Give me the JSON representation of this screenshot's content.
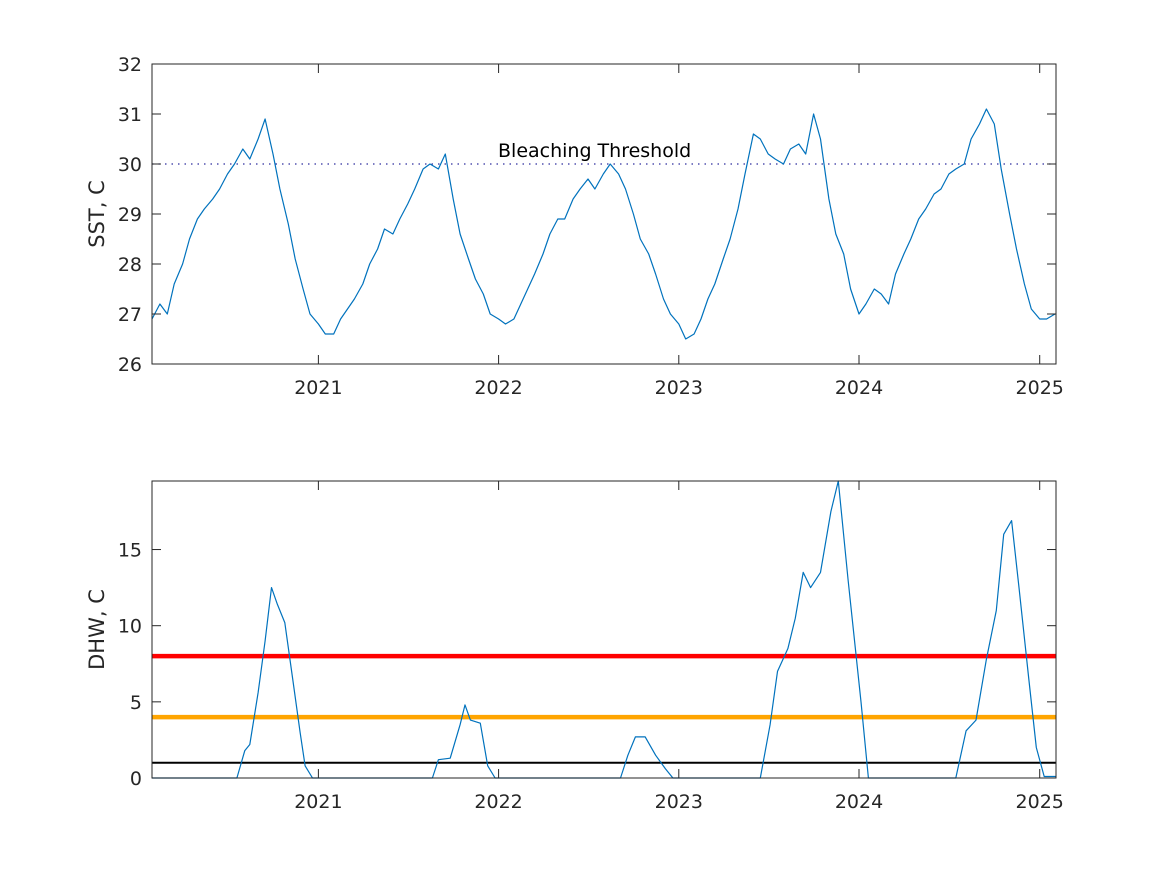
{
  "chart_data": [
    {
      "type": "line",
      "title": "",
      "xlabel": "",
      "ylabel": "SST, C",
      "xlim": [
        "2020-01-30",
        "2025-02-03"
      ],
      "ylim": [
        26,
        32
      ],
      "xtick_labels": [
        "2021",
        "2022",
        "2023",
        "2024",
        "2025"
      ],
      "ytick_labels": [
        "26",
        "27",
        "28",
        "29",
        "30",
        "31",
        "32"
      ],
      "annotation": "Bleaching Threshold",
      "threshold": 30,
      "series": [
        {
          "color": "#0072BD",
          "x": [
            "2020-01-30",
            "2020-02-15",
            "2020-03-01",
            "2020-03-15",
            "2020-04-01",
            "2020-04-15",
            "2020-05-01",
            "2020-05-15",
            "2020-06-01",
            "2020-06-15",
            "2020-07-01",
            "2020-07-15",
            "2020-08-01",
            "2020-08-15",
            "2020-09-01",
            "2020-09-15",
            "2020-10-01",
            "2020-10-15",
            "2020-11-01",
            "2020-11-15",
            "2020-12-01",
            "2020-12-15",
            "2021-01-01",
            "2021-01-15",
            "2021-02-01",
            "2021-02-15",
            "2021-03-01",
            "2021-03-15",
            "2021-04-01",
            "2021-04-15",
            "2021-05-01",
            "2021-05-15",
            "2021-06-01",
            "2021-06-15",
            "2021-07-01",
            "2021-07-15",
            "2021-08-01",
            "2021-08-15",
            "2021-09-01",
            "2021-09-15",
            "2021-10-01",
            "2021-10-15",
            "2021-11-01",
            "2021-11-15",
            "2021-12-01",
            "2021-12-15",
            "2022-01-01",
            "2022-01-15",
            "2022-02-01",
            "2022-02-15",
            "2022-03-01",
            "2022-03-15",
            "2022-04-01",
            "2022-04-15",
            "2022-05-01",
            "2022-05-15",
            "2022-06-01",
            "2022-06-15",
            "2022-07-01",
            "2022-07-15",
            "2022-08-01",
            "2022-08-15",
            "2022-09-01",
            "2022-09-15",
            "2022-10-01",
            "2022-10-15",
            "2022-11-01",
            "2022-11-15",
            "2022-12-01",
            "2022-12-15",
            "2023-01-01",
            "2023-01-15",
            "2023-02-01",
            "2023-02-15",
            "2023-03-01",
            "2023-03-15",
            "2023-04-01",
            "2023-04-15",
            "2023-05-01",
            "2023-05-15",
            "2023-06-01",
            "2023-06-15",
            "2023-07-01",
            "2023-07-15",
            "2023-08-01",
            "2023-08-15",
            "2023-09-01",
            "2023-09-15",
            "2023-10-01",
            "2023-10-15",
            "2023-11-01",
            "2023-11-15",
            "2023-12-01",
            "2023-12-15",
            "2024-01-01",
            "2024-01-15",
            "2024-02-01",
            "2024-02-15",
            "2024-03-01",
            "2024-03-15",
            "2024-04-01",
            "2024-04-15",
            "2024-05-01",
            "2024-05-15",
            "2024-06-01",
            "2024-06-15",
            "2024-07-01",
            "2024-07-15",
            "2024-08-01",
            "2024-08-15",
            "2024-09-01",
            "2024-09-15",
            "2024-10-01",
            "2024-10-15",
            "2024-11-01",
            "2024-11-15",
            "2024-12-01",
            "2024-12-15",
            "2025-01-01",
            "2025-01-15",
            "2025-02-01"
          ],
          "y": [
            26.9,
            27.2,
            27.0,
            27.6,
            28.0,
            28.5,
            28.9,
            29.1,
            29.3,
            29.5,
            29.8,
            30.0,
            30.3,
            30.1,
            30.5,
            30.9,
            30.2,
            29.5,
            28.8,
            28.1,
            27.5,
            27.0,
            26.8,
            26.6,
            26.6,
            26.9,
            27.1,
            27.3,
            27.6,
            28.0,
            28.3,
            28.7,
            28.6,
            28.9,
            29.2,
            29.5,
            29.9,
            30.0,
            29.9,
            30.2,
            29.3,
            28.6,
            28.1,
            27.7,
            27.4,
            27.0,
            26.9,
            26.8,
            26.9,
            27.2,
            27.5,
            27.8,
            28.2,
            28.6,
            28.9,
            28.9,
            29.3,
            29.5,
            29.7,
            29.5,
            29.8,
            30.0,
            29.8,
            29.5,
            29.0,
            28.5,
            28.2,
            27.8,
            27.3,
            27.0,
            26.8,
            26.5,
            26.6,
            26.9,
            27.3,
            27.6,
            28.1,
            28.5,
            29.1,
            29.8,
            30.6,
            30.5,
            30.2,
            30.1,
            30.0,
            30.3,
            30.4,
            30.2,
            31.0,
            30.5,
            29.3,
            28.6,
            28.2,
            27.5,
            27.0,
            27.2,
            27.5,
            27.4,
            27.2,
            27.8,
            28.2,
            28.5,
            28.9,
            29.1,
            29.4,
            29.5,
            29.8,
            29.9,
            30.0,
            30.5,
            30.8,
            31.1,
            30.8,
            29.9,
            29.0,
            28.3,
            27.6,
            27.1,
            26.9,
            26.9,
            27.0
          ]
        }
      ]
    },
    {
      "type": "line",
      "title": "",
      "xlabel": "",
      "ylabel": "DHW, C",
      "xlim": [
        "2020-01-30",
        "2025-02-03"
      ],
      "ylim": [
        0,
        19.5
      ],
      "xtick_labels": [
        "2021",
        "2022",
        "2023",
        "2024",
        "2025"
      ],
      "ytick_labels": [
        "0",
        "5",
        "10",
        "15"
      ],
      "reference_lines": [
        {
          "value": 1,
          "color": "#000000"
        },
        {
          "value": 4,
          "color": "#FFA500"
        },
        {
          "value": 8,
          "color": "#FF0000"
        }
      ],
      "series": [
        {
          "color": "#0072BD",
          "x": [
            "2020-01-30",
            "2020-07-20",
            "2020-08-05",
            "2020-08-15",
            "2020-09-01",
            "2020-09-15",
            "2020-09-28",
            "2020-10-10",
            "2020-10-25",
            "2020-11-10",
            "2020-11-25",
            "2020-12-05",
            "2020-12-20",
            "2021-01-10",
            "2021-08-20",
            "2021-09-01",
            "2021-09-25",
            "2021-10-15",
            "2021-10-25",
            "2021-11-05",
            "2021-11-25",
            "2021-12-10",
            "2021-12-25",
            "2022-01-10",
            "2022-01-20",
            "2022-09-05",
            "2022-09-20",
            "2022-10-05",
            "2022-10-25",
            "2022-11-15",
            "2022-12-05",
            "2022-12-20",
            "2023-01-05",
            "2023-06-15",
            "2023-07-05",
            "2023-07-20",
            "2023-08-10",
            "2023-08-25",
            "2023-09-10",
            "2023-09-25",
            "2023-10-15",
            "2023-11-05",
            "2023-11-20",
            "2023-12-10",
            "2024-01-05",
            "2024-01-20",
            "2024-07-01",
            "2024-07-15",
            "2024-08-05",
            "2024-08-25",
            "2024-09-15",
            "2024-10-05",
            "2024-10-20",
            "2024-11-05",
            "2024-11-20",
            "2024-12-10",
            "2024-12-25",
            "2025-01-10",
            "2025-01-20",
            "2025-02-03"
          ],
          "y": [
            0,
            0,
            1.8,
            2.2,
            5.6,
            9.0,
            12.5,
            11.4,
            10.2,
            6.5,
            3.0,
            0.8,
            0,
            0,
            0,
            1.2,
            1.3,
            3.5,
            4.8,
            3.8,
            3.6,
            0.8,
            0,
            0,
            0,
            0,
            1.5,
            2.7,
            2.7,
            1.5,
            0.6,
            0,
            0,
            0,
            3.5,
            7.0,
            8.5,
            10.5,
            13.5,
            12.5,
            13.5,
            17.5,
            19.5,
            13.0,
            5.0,
            0,
            0,
            0,
            3.1,
            3.8,
            7.8,
            11.0,
            16.0,
            16.9,
            12.5,
            6.5,
            2.0,
            0.1,
            0.1,
            0.1
          ]
        }
      ]
    }
  ]
}
